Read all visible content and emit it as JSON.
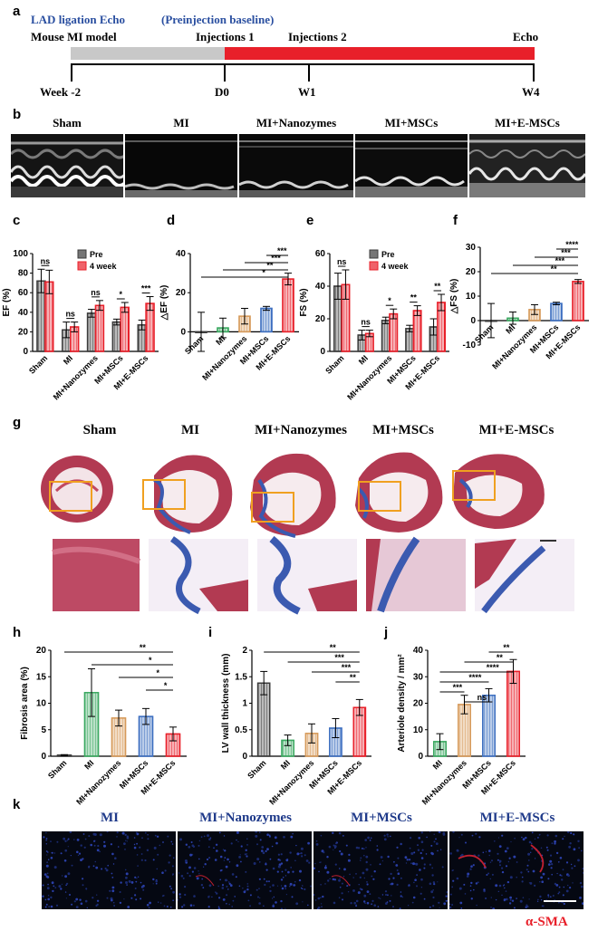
{
  "panels": {
    "a": "a",
    "b": "b",
    "c": "c",
    "d": "d",
    "e": "e",
    "f": "f",
    "g": "g",
    "h": "h",
    "i": "i",
    "j": "j",
    "k": "k"
  },
  "timeline": {
    "top_left_label": "LAD ligation Echo",
    "top_mid_label": "(Preinjection baseline)",
    "model_label": "Mouse MI model",
    "injection1": "Injections 1",
    "injection2": "Injections 2",
    "echo": "Echo",
    "ticks": [
      "Week -2",
      "D0",
      "W1",
      "W4"
    ],
    "colors": {
      "baseline": "#c8c8c8",
      "treatment": "#e8202a",
      "label_blue": "#2a4fa0"
    }
  },
  "echo_labels": [
    "Sham",
    "MI",
    "MI+Nanozymes",
    "MI+MSCs",
    "MI+E-MSCs"
  ],
  "tissue_labels": [
    "Sham",
    "MI",
    "MI+Nanozymes",
    "MI+MSCs",
    "MI+E-MSCs"
  ],
  "fluor_labels": [
    "MI",
    "MI+Nanozymes",
    "MI+MSCs",
    "MI+E-MSCs"
  ],
  "fluor_stain_label": "α-SMA",
  "chart_data": [
    {
      "id": "c",
      "type": "bar",
      "ylabel": "EF (%)",
      "ylim": [
        0,
        100
      ],
      "yticks": [
        0,
        20,
        40,
        60,
        80,
        100
      ],
      "categories": [
        "Sham",
        "MI",
        "MI+Nanozymes",
        "MI+MSCs",
        "MI+E-MSCs"
      ],
      "series": [
        {
          "name": "Pre",
          "values": [
            72,
            22,
            39,
            30,
            27
          ],
          "errors": [
            12,
            8,
            4,
            3,
            5
          ],
          "color": "#3c3c3c"
        },
        {
          "name": "4 week",
          "values": [
            71,
            25,
            47,
            45,
            49
          ],
          "errors": [
            12,
            5,
            5,
            5,
            7
          ],
          "color": "#e8202a"
        }
      ],
      "significance": [
        "ns",
        "ns",
        "ns",
        "*",
        "***"
      ]
    },
    {
      "id": "d",
      "type": "bar",
      "ylabel": "△EF (%)",
      "ylim": [
        -10,
        40
      ],
      "yticks": [
        0,
        20,
        40
      ],
      "categories": [
        "Sham",
        "MI",
        "MI+Nanozymes",
        "MI+MSCs",
        "MI+E-MSCs"
      ],
      "values": [
        0,
        2,
        8,
        12,
        27
      ],
      "errors": [
        10,
        5,
        4,
        1,
        3
      ],
      "colors": [
        "#3c3c3c",
        "#3aa860",
        "#d69a5a",
        "#3d6fc0",
        "#e8202a"
      ],
      "significance": [
        "***",
        "***",
        "**",
        "*"
      ]
    },
    {
      "id": "e",
      "type": "bar",
      "ylabel": "FS (%)",
      "ylim": [
        0,
        60
      ],
      "yticks": [
        0,
        20,
        40,
        60
      ],
      "categories": [
        "Sham",
        "MI",
        "MI+Nanozymes",
        "MI+MSCs",
        "MI+E-MSCs"
      ],
      "series": [
        {
          "name": "Pre",
          "values": [
            40,
            10,
            19,
            14,
            15
          ],
          "errors": [
            8,
            3,
            2,
            2,
            5
          ],
          "color": "#3c3c3c"
        },
        {
          "name": "4 week",
          "values": [
            41,
            11,
            23,
            25,
            30
          ],
          "errors": [
            9,
            2,
            3,
            3,
            5
          ],
          "color": "#e8202a"
        }
      ],
      "significance": [
        "ns",
        "ns",
        "*",
        "**",
        "**"
      ]
    },
    {
      "id": "f",
      "type": "bar",
      "ylabel": "△FS (%)",
      "ylim": [
        -10,
        30
      ],
      "yticks": [
        -10,
        0,
        10,
        20,
        30
      ],
      "categories": [
        "Sham",
        "MI",
        "MI+Nanozymes",
        "MI+MSCs",
        "MI+E-MSCs"
      ],
      "values": [
        0,
        1,
        4.5,
        7,
        16
      ],
      "errors": [
        7,
        2.5,
        2,
        0.5,
        0.8
      ],
      "colors": [
        "#3c3c3c",
        "#3aa860",
        "#d69a5a",
        "#3d6fc0",
        "#e8202a"
      ],
      "significance": [
        "****",
        "***",
        "***",
        "**"
      ]
    },
    {
      "id": "h",
      "type": "bar",
      "ylabel": "Fibrosis area (%)",
      "ylim": [
        0,
        20
      ],
      "yticks": [
        0,
        5,
        10,
        15,
        20
      ],
      "categories": [
        "Sham",
        "MI",
        "MI+Nanozymes",
        "MI+MSCs",
        "MI+E-MSCs"
      ],
      "values": [
        0.2,
        12,
        7.2,
        7.5,
        4.2
      ],
      "errors": [
        0.1,
        4.5,
        1.5,
        1.5,
        1.3
      ],
      "colors": [
        "#3c3c3c",
        "#3aa860",
        "#d69a5a",
        "#3d6fc0",
        "#e8202a"
      ],
      "significance": [
        "**",
        "*",
        "*",
        "*"
      ]
    },
    {
      "id": "i",
      "type": "bar",
      "ylabel": "LV wall thickness (mm)",
      "ylim": [
        0,
        2.0
      ],
      "yticks": [
        0.0,
        0.5,
        1.0,
        1.5,
        2.0
      ],
      "categories": [
        "Sham",
        "MI",
        "MI+Nanozymes",
        "MI+MSCs",
        "MI+E-MSCs"
      ],
      "values": [
        1.38,
        0.3,
        0.43,
        0.53,
        0.92
      ],
      "errors": [
        0.22,
        0.1,
        0.18,
        0.18,
        0.15
      ],
      "colors": [
        "#3c3c3c",
        "#3aa860",
        "#d69a5a",
        "#3d6fc0",
        "#e8202a"
      ],
      "significance": [
        "**",
        "***",
        "***",
        "**"
      ]
    },
    {
      "id": "j",
      "type": "bar",
      "ylabel": "Arteriole density / mm²",
      "ylim": [
        0,
        40
      ],
      "yticks": [
        0,
        10,
        20,
        30,
        40
      ],
      "categories": [
        "MI",
        "MI+Nanozymes",
        "MI+MSCs",
        "MI+E-MSCs"
      ],
      "values": [
        5.5,
        19.5,
        23,
        32
      ],
      "errors": [
        3,
        3.5,
        2.5,
        4.5
      ],
      "colors": [
        "#3aa860",
        "#d69a5a",
        "#3d6fc0",
        "#e8202a"
      ],
      "significance": [
        "**",
        "**",
        "****",
        "****",
        "***",
        "ns"
      ]
    }
  ]
}
